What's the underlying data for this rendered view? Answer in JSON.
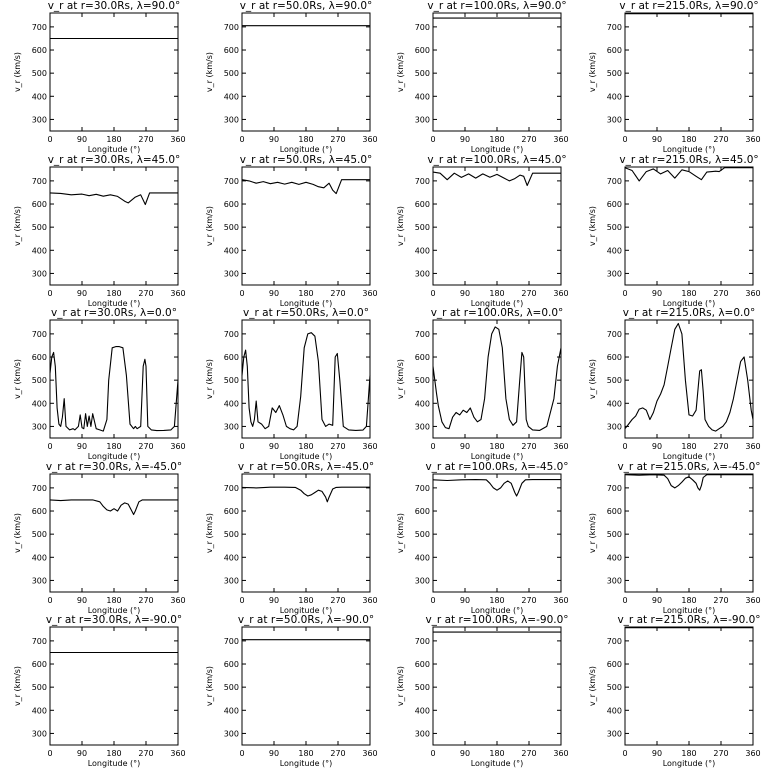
{
  "ylabel": "v_r (km/s)",
  "xlabel": "Longitude (°)",
  "chart_data": [
    {
      "type": "line",
      "title": "v_r at r=30.0Rs, λ=90.0°",
      "xlim": [
        0,
        360
      ],
      "ylim": [
        250,
        760
      ],
      "xticks": [
        0,
        90,
        180,
        270,
        360
      ],
      "yticks": [
        300,
        400,
        500,
        600,
        700
      ],
      "x": [
        0,
        360
      ],
      "y": [
        650,
        650
      ]
    },
    {
      "type": "line",
      "title": "v_r at r=50.0Rs, λ=90.0°",
      "xlim": [
        0,
        360
      ],
      "ylim": [
        250,
        760
      ],
      "xticks": [
        0,
        90,
        180,
        270,
        360
      ],
      "yticks": [
        300,
        400,
        500,
        600,
        700
      ],
      "x": [
        0,
        360
      ],
      "y": [
        705,
        705
      ]
    },
    {
      "type": "line",
      "title": "v_r at r=100.0Rs, λ=90.0°",
      "xlim": [
        0,
        360
      ],
      "ylim": [
        250,
        760
      ],
      "xticks": [
        0,
        90,
        180,
        270,
        360
      ],
      "yticks": [
        300,
        400,
        500,
        600,
        700
      ],
      "x": [
        0,
        360
      ],
      "y": [
        738,
        738
      ]
    },
    {
      "type": "line",
      "title": "v_r at r=215.0Rs, λ=90.0°",
      "xlim": [
        0,
        360
      ],
      "ylim": [
        250,
        760
      ],
      "xticks": [
        0,
        90,
        180,
        270,
        360
      ],
      "yticks": [
        300,
        400,
        500,
        600,
        700
      ],
      "x": [
        0,
        360
      ],
      "y": [
        757,
        757
      ]
    },
    {
      "type": "line",
      "title": "v_r at r=30.0Rs, λ=45.0°",
      "xlim": [
        0,
        360
      ],
      "ylim": [
        250,
        760
      ],
      "xticks": [
        0,
        90,
        180,
        270,
        360
      ],
      "yticks": [
        300,
        400,
        500,
        600,
        700
      ],
      "x": [
        0,
        30,
        60,
        90,
        110,
        130,
        150,
        170,
        190,
        210,
        220,
        240,
        255,
        268,
        280,
        300,
        330,
        360
      ],
      "y": [
        648,
        646,
        640,
        643,
        636,
        642,
        634,
        640,
        633,
        612,
        605,
        630,
        640,
        598,
        648,
        648,
        648,
        648
      ]
    },
    {
      "type": "line",
      "title": "v_r at r=50.0Rs, λ=45.0°",
      "xlim": [
        0,
        360
      ],
      "ylim": [
        250,
        760
      ],
      "xticks": [
        0,
        90,
        180,
        270,
        360
      ],
      "yticks": [
        300,
        400,
        500,
        600,
        700
      ],
      "x": [
        0,
        20,
        40,
        60,
        80,
        100,
        120,
        140,
        160,
        180,
        200,
        215,
        230,
        245,
        255,
        265,
        280,
        300,
        330,
        360
      ],
      "y": [
        705,
        700,
        690,
        697,
        688,
        694,
        686,
        694,
        685,
        694,
        685,
        675,
        670,
        690,
        660,
        645,
        705,
        705,
        705,
        705
      ]
    },
    {
      "type": "line",
      "title": "v_r at r=100.0Rs, λ=45.0°",
      "xlim": [
        0,
        360
      ],
      "ylim": [
        250,
        760
      ],
      "xticks": [
        0,
        90,
        180,
        270,
        360
      ],
      "yticks": [
        300,
        400,
        500,
        600,
        700
      ],
      "x": [
        0,
        20,
        40,
        60,
        80,
        100,
        120,
        140,
        160,
        180,
        200,
        215,
        230,
        245,
        255,
        265,
        280,
        300,
        330,
        360
      ],
      "y": [
        738,
        733,
        705,
        733,
        715,
        730,
        712,
        730,
        716,
        728,
        712,
        700,
        710,
        725,
        720,
        680,
        733,
        733,
        733,
        733
      ]
    },
    {
      "type": "line",
      "title": "v_r at r=215.0Rs, λ=45.0°",
      "xlim": [
        0,
        360
      ],
      "ylim": [
        250,
        760
      ],
      "xticks": [
        0,
        90,
        180,
        270,
        360
      ],
      "yticks": [
        300,
        400,
        500,
        600,
        700
      ],
      "x": [
        0,
        20,
        40,
        60,
        80,
        100,
        120,
        140,
        160,
        180,
        200,
        215,
        230,
        245,
        255,
        265,
        280,
        300,
        330,
        360
      ],
      "y": [
        757,
        745,
        700,
        740,
        752,
        730,
        745,
        712,
        748,
        740,
        720,
        705,
        738,
        740,
        742,
        740,
        757,
        757,
        757,
        757
      ]
    },
    {
      "type": "line",
      "title": "v_r at r=30.0Rs, λ=0.0°",
      "xlim": [
        0,
        360
      ],
      "ylim": [
        250,
        760
      ],
      "xticks": [
        0,
        90,
        180,
        270,
        360
      ],
      "yticks": [
        300,
        400,
        500,
        600,
        700
      ],
      "x": [
        0,
        5,
        10,
        15,
        20,
        25,
        30,
        35,
        40,
        45,
        55,
        65,
        70,
        80,
        85,
        90,
        95,
        100,
        105,
        110,
        115,
        120,
        130,
        140,
        150,
        160,
        165,
        175,
        185,
        195,
        205,
        215,
        225,
        235,
        240,
        245,
        255,
        262,
        267,
        270,
        275,
        285,
        300,
        320,
        340,
        350,
        360
      ],
      "y": [
        530,
        600,
        620,
        560,
        380,
        310,
        300,
        340,
        420,
        300,
        285,
        290,
        285,
        300,
        350,
        295,
        290,
        355,
        300,
        345,
        300,
        355,
        290,
        285,
        280,
        330,
        500,
        640,
        645,
        645,
        640,
        520,
        310,
        290,
        300,
        290,
        300,
        560,
        590,
        560,
        300,
        285,
        282,
        283,
        285,
        300,
        500
      ]
    },
    {
      "type": "line",
      "title": "v_r at r=50.0Rs, λ=0.0°",
      "xlim": [
        0,
        360
      ],
      "ylim": [
        250,
        760
      ],
      "xticks": [
        0,
        90,
        180,
        270,
        360
      ],
      "yticks": [
        300,
        400,
        500,
        600,
        700
      ],
      "x": [
        0,
        5,
        10,
        15,
        20,
        25,
        30,
        35,
        40,
        45,
        55,
        65,
        75,
        85,
        95,
        105,
        115,
        125,
        135,
        145,
        155,
        165,
        175,
        185,
        195,
        205,
        215,
        225,
        235,
        245,
        255,
        262,
        268,
        275,
        285,
        300,
        320,
        340,
        350,
        360
      ],
      "y": [
        520,
        600,
        630,
        560,
        380,
        320,
        300,
        330,
        410,
        320,
        310,
        290,
        300,
        380,
        360,
        390,
        350,
        300,
        290,
        285,
        300,
        430,
        640,
        700,
        705,
        690,
        580,
        330,
        300,
        310,
        305,
        600,
        615,
        500,
        300,
        285,
        283,
        284,
        300,
        520
      ]
    },
    {
      "type": "line",
      "title": "v_r at r=100.0Rs, λ=0.0°",
      "xlim": [
        0,
        360
      ],
      "ylim": [
        250,
        760
      ],
      "xticks": [
        0,
        90,
        180,
        270,
        360
      ],
      "yticks": [
        300,
        400,
        500,
        600,
        700
      ],
      "x": [
        0,
        5,
        10,
        15,
        25,
        35,
        45,
        55,
        65,
        75,
        85,
        95,
        105,
        115,
        125,
        135,
        145,
        155,
        165,
        175,
        185,
        195,
        205,
        215,
        225,
        235,
        245,
        250,
        255,
        262,
        268,
        280,
        300,
        320,
        340,
        350,
        360
      ],
      "y": [
        560,
        500,
        440,
        390,
        320,
        295,
        290,
        340,
        360,
        350,
        370,
        360,
        380,
        340,
        320,
        330,
        420,
        600,
        700,
        730,
        720,
        640,
        420,
        330,
        305,
        320,
        520,
        620,
        600,
        330,
        300,
        285,
        283,
        300,
        420,
        560,
        640
      ]
    },
    {
      "type": "line",
      "title": "v_r at r=215.0Rs, λ=0.0°",
      "xlim": [
        0,
        360
      ],
      "ylim": [
        250,
        760
      ],
      "xticks": [
        0,
        90,
        180,
        270,
        360
      ],
      "yticks": [
        300,
        400,
        500,
        600,
        700
      ],
      "x": [
        0,
        10,
        20,
        30,
        40,
        50,
        60,
        70,
        80,
        90,
        100,
        110,
        120,
        130,
        140,
        150,
        160,
        170,
        180,
        190,
        200,
        210,
        215,
        220,
        225,
        235,
        245,
        255,
        265,
        275,
        285,
        295,
        305,
        315,
        325,
        335,
        345,
        355,
        360
      ],
      "y": [
        290,
        310,
        330,
        345,
        375,
        380,
        370,
        330,
        360,
        410,
        440,
        480,
        560,
        640,
        720,
        745,
        700,
        500,
        350,
        345,
        370,
        540,
        545,
        450,
        330,
        300,
        285,
        280,
        290,
        300,
        320,
        360,
        420,
        500,
        580,
        600,
        500,
        370,
        330
      ]
    },
    {
      "type": "line",
      "title": "v_r at r=30.0Rs, λ=-45.0°",
      "xlim": [
        0,
        360
      ],
      "ylim": [
        250,
        760
      ],
      "xticks": [
        0,
        90,
        180,
        270,
        360
      ],
      "yticks": [
        300,
        400,
        500,
        600,
        700
      ],
      "x": [
        0,
        30,
        60,
        90,
        120,
        140,
        150,
        160,
        170,
        180,
        190,
        200,
        210,
        220,
        230,
        235,
        240,
        250,
        260,
        280,
        320,
        360
      ],
      "y": [
        648,
        645,
        648,
        648,
        648,
        640,
        620,
        605,
        600,
        610,
        600,
        625,
        635,
        630,
        600,
        585,
        600,
        640,
        648,
        648,
        648,
        648
      ]
    },
    {
      "type": "line",
      "title": "v_r at r=50.0Rs, λ=-45.0°",
      "xlim": [
        0,
        360
      ],
      "ylim": [
        250,
        760
      ],
      "xticks": [
        0,
        90,
        180,
        270,
        360
      ],
      "yticks": [
        300,
        400,
        500,
        600,
        700
      ],
      "x": [
        0,
        40,
        80,
        120,
        150,
        165,
        175,
        185,
        195,
        205,
        215,
        225,
        235,
        240,
        245,
        255,
        265,
        280,
        320,
        360
      ],
      "y": [
        702,
        700,
        703,
        703,
        702,
        690,
        675,
        665,
        670,
        680,
        690,
        685,
        660,
        640,
        660,
        695,
        702,
        703,
        703,
        703
      ]
    },
    {
      "type": "line",
      "title": "v_r at r=100.0Rs, λ=-45.0°",
      "xlim": [
        0,
        360
      ],
      "ylim": [
        250,
        760
      ],
      "xticks": [
        0,
        90,
        180,
        270,
        360
      ],
      "yticks": [
        300,
        400,
        500,
        600,
        700
      ],
      "x": [
        0,
        40,
        80,
        120,
        150,
        160,
        170,
        180,
        190,
        200,
        210,
        220,
        230,
        235,
        240,
        250,
        260,
        280,
        320,
        360
      ],
      "y": [
        735,
        732,
        735,
        736,
        735,
        720,
        700,
        690,
        700,
        720,
        730,
        720,
        680,
        665,
        680,
        720,
        735,
        736,
        736,
        736
      ]
    },
    {
      "type": "line",
      "title": "v_r at r=215.0Rs, λ=-45.0°",
      "xlim": [
        0,
        360
      ],
      "ylim": [
        250,
        760
      ],
      "xticks": [
        0,
        90,
        180,
        270,
        360
      ],
      "yticks": [
        300,
        400,
        500,
        600,
        700
      ],
      "x": [
        0,
        40,
        80,
        110,
        120,
        130,
        140,
        150,
        160,
        170,
        180,
        190,
        200,
        205,
        210,
        215,
        220,
        230,
        240,
        260,
        300,
        360
      ],
      "y": [
        757,
        755,
        757,
        755,
        740,
        710,
        700,
        710,
        725,
        742,
        748,
        735,
        720,
        700,
        690,
        710,
        745,
        757,
        757,
        757,
        757,
        757
      ]
    },
    {
      "type": "line",
      "title": "v_r at r=30.0Rs, λ=-90.0°",
      "xlim": [
        0,
        360
      ],
      "ylim": [
        250,
        760
      ],
      "xticks": [
        0,
        90,
        180,
        270,
        360
      ],
      "yticks": [
        300,
        400,
        500,
        600,
        700
      ],
      "x": [
        0,
        360
      ],
      "y": [
        650,
        650
      ]
    },
    {
      "type": "line",
      "title": "v_r at r=50.0Rs, λ=-90.0°",
      "xlim": [
        0,
        360
      ],
      "ylim": [
        250,
        760
      ],
      "xticks": [
        0,
        90,
        180,
        270,
        360
      ],
      "yticks": [
        300,
        400,
        500,
        600,
        700
      ],
      "x": [
        0,
        360
      ],
      "y": [
        705,
        705
      ]
    },
    {
      "type": "line",
      "title": "v_r at r=100.0Rs, λ=-90.0°",
      "xlim": [
        0,
        360
      ],
      "ylim": [
        250,
        760
      ],
      "xticks": [
        0,
        90,
        180,
        270,
        360
      ],
      "yticks": [
        300,
        400,
        500,
        600,
        700
      ],
      "x": [
        0,
        360
      ],
      "y": [
        738,
        738
      ]
    },
    {
      "type": "line",
      "title": "v_r at r=215.0Rs, λ=-90.0°",
      "xlim": [
        0,
        360
      ],
      "ylim": [
        250,
        760
      ],
      "xticks": [
        0,
        90,
        180,
        270,
        360
      ],
      "yticks": [
        300,
        400,
        500,
        600,
        700
      ],
      "x": [
        0,
        360
      ],
      "y": [
        757,
        757
      ]
    }
  ]
}
